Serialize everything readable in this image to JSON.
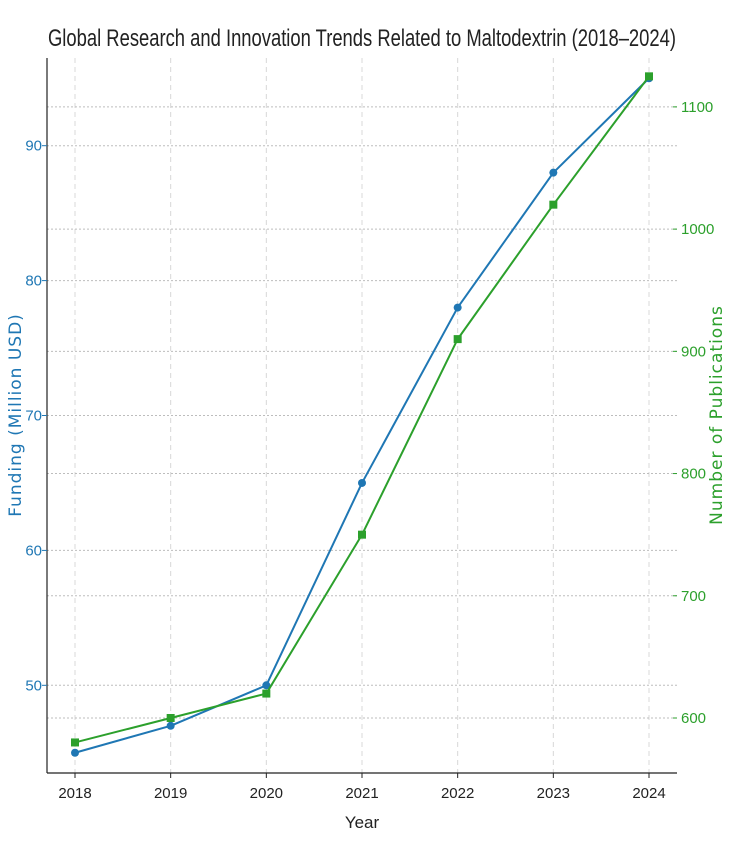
{
  "chart_data": {
    "type": "line",
    "title": "Global Research and Innovation Trends Related to Maltodextrin (2018–2024)",
    "xlabel": "Year",
    "ylabel_left": "Funding (Million USD)",
    "ylabel_right": "Number of Publications",
    "x": [
      "2018",
      "2019",
      "2020",
      "2021",
      "2022",
      "2023",
      "2024"
    ],
    "ylim_left": [
      43.5,
      96.5
    ],
    "yticks_left": [
      50,
      60,
      70,
      80,
      90
    ],
    "ylim_right": [
      555,
      1140
    ],
    "yticks_right": [
      600,
      700,
      800,
      900,
      1000,
      1100
    ],
    "grid": true,
    "series": [
      {
        "axis": "left",
        "color": "#1f77b4",
        "marker": "circle",
        "values": [
          45,
          47,
          50,
          65,
          78,
          88,
          95
        ]
      },
      {
        "axis": "right",
        "color": "#2ca02c",
        "marker": "square",
        "values": [
          580,
          600,
          620,
          750,
          910,
          1020,
          1125
        ]
      }
    ]
  }
}
